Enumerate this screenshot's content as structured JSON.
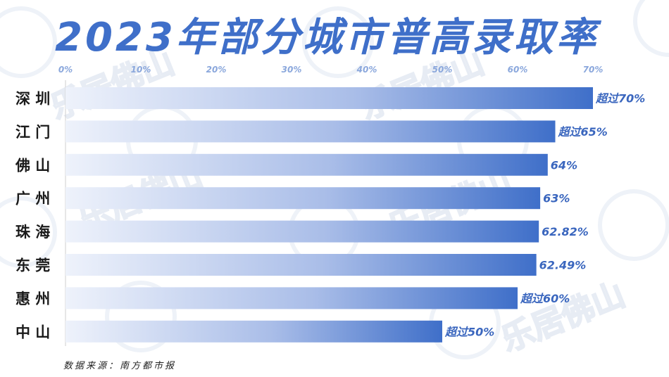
{
  "chart_data": {
    "type": "bar",
    "orientation": "horizontal",
    "title": "2023年部分城市普高录取率",
    "categories": [
      "深圳",
      "江门",
      "佛山",
      "广州",
      "珠海",
      "东莞",
      "惠州",
      "中山"
    ],
    "values": [
      70,
      65,
      64,
      63,
      62.82,
      62.49,
      60,
      50
    ],
    "data_labels": [
      "超过70%",
      "超过65%",
      "64%",
      "63%",
      "62.82%",
      "62.49%",
      "超过60%",
      "超过50%"
    ],
    "xticks": [
      "0%",
      "10%",
      "20%",
      "30%",
      "40%",
      "50%",
      "60%",
      "70%"
    ],
    "xlim": [
      0,
      70
    ],
    "axis_position": "top",
    "grid": false,
    "source": "数据来源：南方都市报",
    "watermark": "乐居佛山",
    "colors": {
      "title": "#3f6fc9",
      "bar_start": "#eef2fb",
      "bar_end": "#3f6fc9",
      "label": "#3a66be",
      "tick": "#8aa7dc"
    }
  }
}
